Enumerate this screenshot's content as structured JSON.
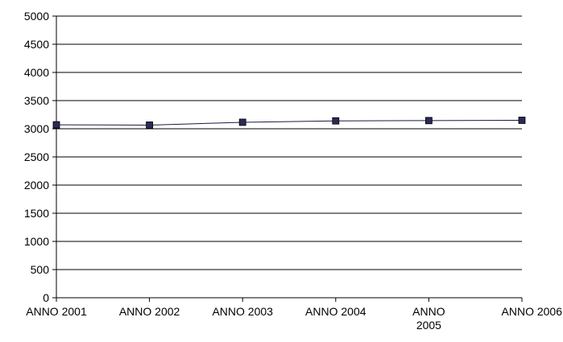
{
  "chart_data": {
    "type": "line",
    "categories": [
      "ANNO 2001",
      "ANNO 2002",
      "ANNO 2003",
      "ANNO 2004",
      "ANNO 2005",
      "ANNO 2006"
    ],
    "category_label_lines": [
      [
        "ANNO 2001"
      ],
      [
        "ANNO 2002"
      ],
      [
        "ANNO 2003"
      ],
      [
        "ANNO 2004"
      ],
      [
        "ANNO",
        "2005"
      ],
      [
        "ANNO 2006"
      ]
    ],
    "series": [
      {
        "values": [
          3070,
          3065,
          3115,
          3140,
          3145,
          3150
        ]
      }
    ],
    "yticks": [
      0,
      500,
      1000,
      1500,
      2000,
      2500,
      3000,
      3500,
      4000,
      4500,
      5000
    ],
    "ylim": [
      0,
      5000
    ],
    "grid": "horizontal",
    "legend": "none",
    "colors": {
      "line": "#1a1a40",
      "marker": "#2a2a55",
      "grid": "#000000"
    }
  }
}
